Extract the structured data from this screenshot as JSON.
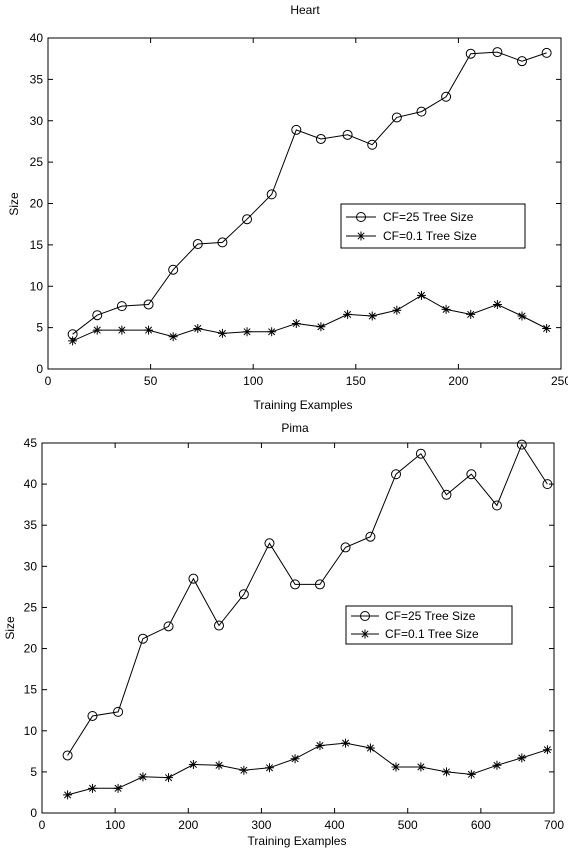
{
  "chart_data": [
    {
      "type": "line",
      "title": "Heart",
      "xlabel": "Training Examples",
      "ylabel": "Size",
      "xlim": [
        0,
        250
      ],
      "ylim": [
        0,
        40
      ],
      "xticks": [
        0,
        50,
        100,
        150,
        200,
        250
      ],
      "yticks": [
        0,
        5,
        10,
        15,
        20,
        25,
        30,
        35,
        40
      ],
      "grid": false,
      "legend_position": "center-right",
      "series": [
        {
          "name": "CF=25 Tree Size",
          "marker": "circle",
          "x": [
            12,
            24,
            36,
            49,
            61,
            73,
            85,
            97,
            109,
            121,
            133,
            146,
            158,
            170,
            182,
            194,
            206,
            219,
            231,
            243
          ],
          "y": [
            4.2,
            6.5,
            7.6,
            7.8,
            12.0,
            15.1,
            15.3,
            18.1,
            21.1,
            28.9,
            27.8,
            28.3,
            27.1,
            30.4,
            31.1,
            32.9,
            38.1,
            38.3,
            37.2,
            38.2
          ]
        },
        {
          "name": "CF=0.1 Tree Size",
          "marker": "star",
          "x": [
            12,
            24,
            36,
            49,
            61,
            73,
            85,
            97,
            109,
            121,
            133,
            146,
            158,
            170,
            182,
            194,
            206,
            219,
            231,
            243
          ],
          "y": [
            3.4,
            4.7,
            4.7,
            4.7,
            3.9,
            4.9,
            4.3,
            4.5,
            4.5,
            5.5,
            5.1,
            6.6,
            6.4,
            7.1,
            8.9,
            7.2,
            6.6,
            7.8,
            6.4,
            4.9
          ]
        }
      ]
    },
    {
      "type": "line",
      "title": "Pima",
      "xlabel": "Training Examples",
      "ylabel": "Size",
      "xlim": [
        0,
        700
      ],
      "ylim": [
        0,
        45
      ],
      "xticks": [
        0,
        100,
        200,
        300,
        400,
        500,
        600,
        700
      ],
      "yticks": [
        0,
        5,
        10,
        15,
        20,
        25,
        30,
        35,
        40,
        45
      ],
      "grid": false,
      "legend_position": "center-right",
      "series": [
        {
          "name": "CF=25 Tree Size",
          "marker": "circle",
          "x": [
            35,
            69,
            104,
            138,
            173,
            207,
            242,
            276,
            311,
            346,
            380,
            415,
            449,
            484,
            518,
            553,
            587,
            622,
            656,
            691
          ],
          "y": [
            7.0,
            11.8,
            12.3,
            21.2,
            22.7,
            28.5,
            22.8,
            26.6,
            32.8,
            27.8,
            27.8,
            32.3,
            33.6,
            41.2,
            43.7,
            38.7,
            41.2,
            37.4,
            44.8,
            40.0
          ]
        },
        {
          "name": "CF=0.1 Tree Size",
          "marker": "star",
          "x": [
            35,
            69,
            104,
            138,
            173,
            207,
            242,
            276,
            311,
            346,
            380,
            415,
            449,
            484,
            518,
            553,
            587,
            622,
            656,
            691
          ],
          "y": [
            2.2,
            3.0,
            3.0,
            4.4,
            4.3,
            5.9,
            5.8,
            5.2,
            5.5,
            6.6,
            8.2,
            8.5,
            7.9,
            5.6,
            5.6,
            5.0,
            4.7,
            5.8,
            6.7,
            7.7
          ]
        }
      ]
    }
  ]
}
